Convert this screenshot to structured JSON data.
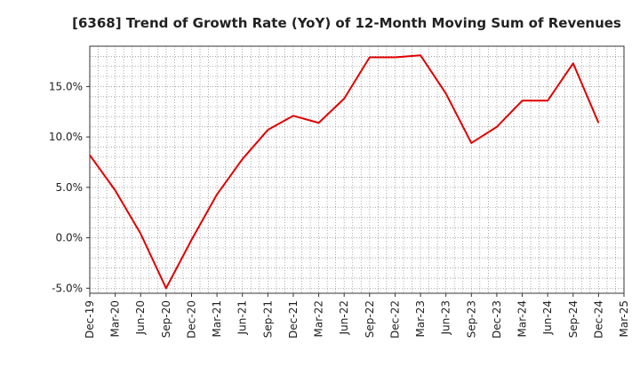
{
  "chart_data": {
    "type": "line",
    "title": "[6368]  Trend of Growth Rate (YoY) of 12-Month Moving Sum of Revenues",
    "xlabel": "",
    "ylabel": "",
    "x_tick_labels": [
      "Dec-19",
      "Mar-20",
      "Jun-20",
      "Sep-20",
      "Dec-20",
      "Mar-21",
      "Jun-21",
      "Sep-21",
      "Dec-21",
      "Mar-22",
      "Jun-22",
      "Sep-22",
      "Dec-22",
      "Mar-23",
      "Jun-23",
      "Sep-23",
      "Dec-23",
      "Mar-24",
      "Jun-24",
      "Sep-24",
      "Dec-24",
      "Mar-25"
    ],
    "y_ticks": [
      {
        "value": 15.0,
        "label": "15.0%"
      },
      {
        "value": 10.0,
        "label": "10.0%"
      },
      {
        "value": 5.0,
        "label": "5.0%"
      },
      {
        "value": 0.0,
        "label": "0.0%"
      },
      {
        "value": -5.0,
        "label": "-5.0%"
      }
    ],
    "ylim": [
      -5.5,
      19.0
    ],
    "grid": true,
    "series": [
      {
        "color": "#e00000",
        "x": [
          "Dec-19",
          "Mar-20",
          "Jun-20",
          "Sep-20",
          "Dec-20",
          "Mar-21",
          "Jun-21",
          "Sep-21",
          "Dec-21",
          "Mar-22",
          "Jun-22",
          "Sep-22",
          "Dec-22",
          "Mar-23",
          "Jun-23",
          "Sep-23",
          "Dec-23",
          "Mar-24",
          "Jun-24",
          "Sep-24",
          "Dec-24"
        ],
        "values": [
          8.2,
          4.7,
          0.4,
          -5.0,
          -0.2,
          4.3,
          7.8,
          10.7,
          12.1,
          11.4,
          13.8,
          17.9,
          17.9,
          18.1,
          14.3,
          9.4,
          11.0,
          13.6,
          13.6,
          17.3,
          11.4
        ]
      }
    ]
  }
}
